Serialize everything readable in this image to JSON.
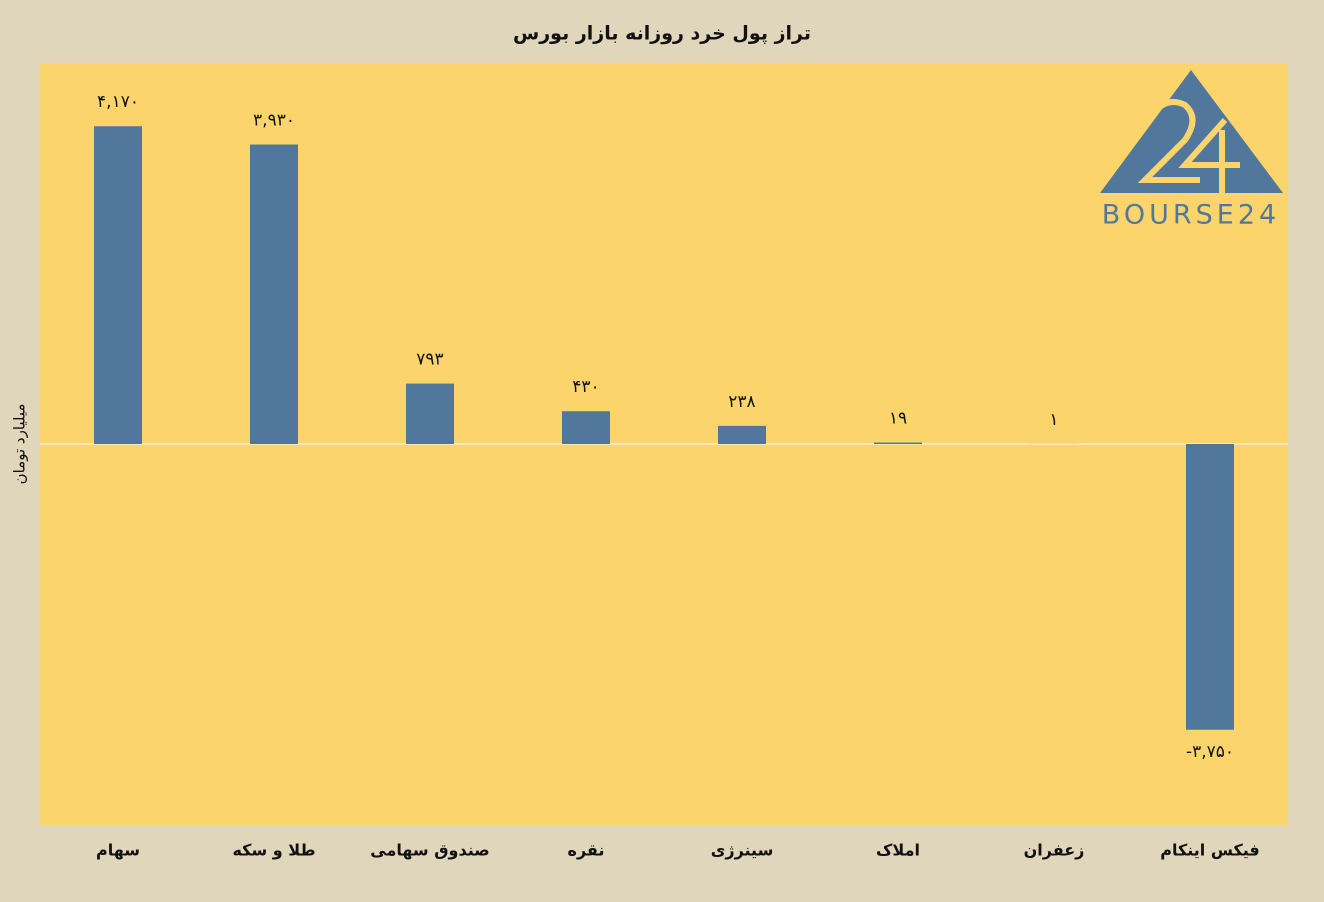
{
  "chart_data": {
    "type": "bar",
    "title": "تراز پول خرد روزانه بازار بورس",
    "y_label": "میلیارد تومان",
    "logo": "BOURSE24",
    "categories": [
      "سهام",
      "طلا و سکه",
      "صندوق سهامی",
      "نقره",
      "سینرژی",
      "املاک",
      "زعفران",
      "فیکس اینکام"
    ],
    "values": [
      4170,
      3930,
      793,
      430,
      238,
      19,
      1,
      -3750
    ],
    "value_labels": [
      "۴,۱۷۰",
      "۳,۹۳۰",
      "۷۹۳",
      "۴۳۰",
      "۲۳۸",
      "۱۹",
      "۱",
      "-۳,۷۵۰"
    ],
    "color": "#52779d",
    "ylim": [
      -5000,
      5000
    ]
  }
}
